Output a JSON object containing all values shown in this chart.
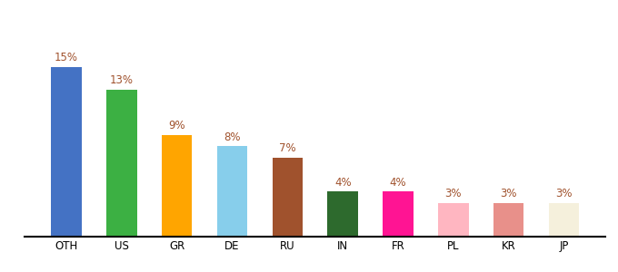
{
  "categories": [
    "OTH",
    "US",
    "GR",
    "DE",
    "RU",
    "IN",
    "FR",
    "PL",
    "KR",
    "JP"
  ],
  "values": [
    15,
    13,
    9,
    8,
    7,
    4,
    4,
    3,
    3,
    3
  ],
  "bar_colors": [
    "#4472C4",
    "#3CB043",
    "#FFA500",
    "#87CEEB",
    "#A0522D",
    "#2D6A2D",
    "#FF1493",
    "#FFB6C1",
    "#E8908A",
    "#F5F0DC"
  ],
  "label_color": "#A0522D",
  "background_color": "#ffffff",
  "ylim": [
    0,
    18
  ],
  "bar_width": 0.55,
  "label_fontsize": 8.5,
  "tick_fontsize": 8.5
}
